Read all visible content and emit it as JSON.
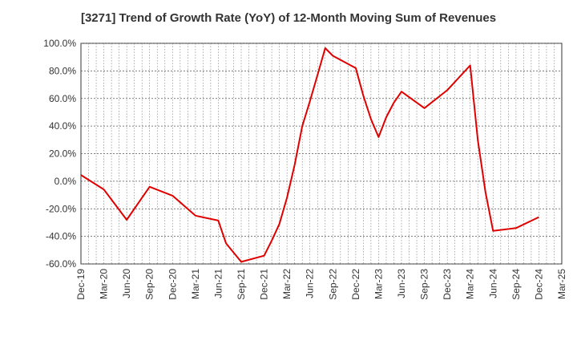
{
  "title": "[3271]  Trend of Growth Rate (YoY) of 12-Month Moving Sum of Revenues",
  "chart_data": {
    "type": "line",
    "title": "[3271]  Trend of Growth Rate (YoY) of 12-Month Moving Sum of Revenues",
    "xlabel": "",
    "ylabel": "",
    "ylim": [
      -60,
      100
    ],
    "yticks": [
      100,
      80,
      60,
      40,
      20,
      0,
      -20,
      -40,
      -60
    ],
    "ytick_labels": [
      "100.0%",
      "80.0%",
      "60.0%",
      "40.0%",
      "20.0%",
      "0.0%",
      "-20.0%",
      "-40.0%",
      "-60.0%"
    ],
    "xtick_labels": [
      "Dec-19",
      "Mar-20",
      "Jun-20",
      "Sep-20",
      "Dec-20",
      "Mar-21",
      "Jun-21",
      "Sep-21",
      "Dec-21",
      "Mar-22",
      "Jun-22",
      "Sep-22",
      "Dec-22",
      "Mar-23",
      "Jun-23",
      "Sep-23",
      "Dec-23",
      "Mar-24",
      "Jun-24",
      "Sep-24",
      "Dec-24",
      "Mar-25"
    ],
    "grid": true,
    "line_color": "#e00000",
    "series": [
      {
        "x": [
          "Dec-19",
          "Mar-20",
          "Jun-20",
          "Sep-20",
          "Dec-20",
          "Mar-21",
          "Jun-21",
          "Jul-21",
          "Sep-21",
          "Dec-21",
          "Jan-22",
          "Feb-22",
          "Mar-22",
          "Apr-22",
          "May-22",
          "Jun-22",
          "Jul-22",
          "Aug-22",
          "Sep-22",
          "Dec-22",
          "Jan-23",
          "Feb-23",
          "Mar-23",
          "Apr-23",
          "May-23",
          "Jun-23",
          "Sep-23",
          "Dec-23",
          "Mar-24",
          "Apr-24",
          "May-24",
          "Jun-24",
          "Sep-24",
          "Dec-24"
        ],
        "values": [
          4.5,
          -6,
          -28,
          -4,
          -10.5,
          -25,
          -28.5,
          -45,
          -58.5,
          -54,
          -43,
          -31,
          -12,
          12,
          40,
          58,
          77,
          96.5,
          91,
          82,
          62,
          45,
          32,
          46.5,
          57,
          65,
          53,
          66,
          84,
          30,
          -8,
          -36,
          -34,
          -26
        ]
      }
    ]
  }
}
